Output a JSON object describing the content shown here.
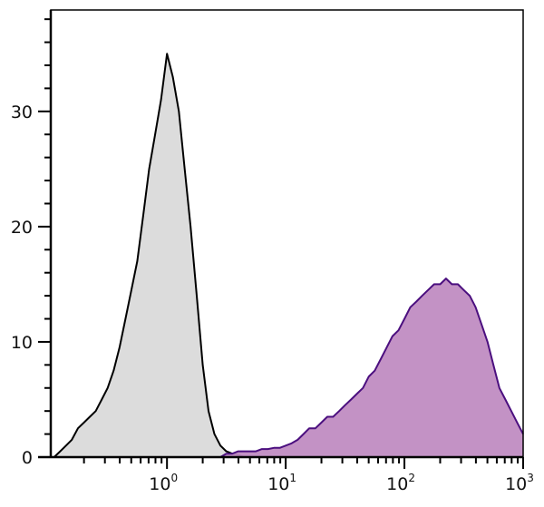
{
  "chart_data": {
    "type": "area",
    "title": "",
    "xlabel": "",
    "ylabel": "",
    "x_scale": "log",
    "xlim": [
      0.105,
      1000
    ],
    "ylim": [
      0,
      38.8
    ],
    "grid": false,
    "legend": "none",
    "x_ticks": [
      {
        "value": 1,
        "base": "10",
        "exp": "0"
      },
      {
        "value": 10,
        "base": "10",
        "exp": "1"
      },
      {
        "value": 100,
        "base": "10",
        "exp": "2"
      },
      {
        "value": 1000,
        "base": "10",
        "exp": "3"
      }
    ],
    "y_ticks": [
      {
        "value": 0,
        "label": "0"
      },
      {
        "value": 10,
        "label": "10"
      },
      {
        "value": 20,
        "label": "20"
      },
      {
        "value": 30,
        "label": "30"
      }
    ],
    "x": [
      0.1,
      0.112,
      0.126,
      0.141,
      0.158,
      0.178,
      0.2,
      0.224,
      0.251,
      0.282,
      0.316,
      0.355,
      0.398,
      0.447,
      0.501,
      0.562,
      0.631,
      0.708,
      0.794,
      0.891,
      1,
      1.12,
      1.26,
      1.41,
      1.58,
      1.78,
      2,
      2.24,
      2.51,
      2.82,
      3.16,
      3.55,
      3.98,
      4.47,
      5.01,
      5.62,
      6.31,
      7.08,
      7.94,
      8.91,
      10,
      11.2,
      12.6,
      14.1,
      15.8,
      17.8,
      20,
      22.4,
      25.1,
      28.2,
      31.6,
      35.5,
      39.8,
      44.7,
      50.1,
      56.2,
      63.1,
      70.8,
      79.4,
      89.1,
      100,
      112,
      126,
      141,
      158,
      178,
      200,
      224,
      251,
      282,
      316,
      355,
      398,
      447,
      501,
      562,
      631,
      708,
      794,
      891,
      1000
    ],
    "series": [
      {
        "color": "#000000",
        "fill": "#dcdcdc",
        "values": [
          0,
          0,
          0.5,
          1,
          1.5,
          2.5,
          3,
          3.5,
          4,
          5,
          6,
          7.5,
          9.5,
          12,
          14.5,
          17,
          21,
          25,
          28,
          31,
          35,
          33,
          30,
          25,
          20,
          14,
          8,
          4,
          2,
          1,
          0.5,
          0.3,
          0.2,
          0,
          0,
          0,
          0,
          0,
          0,
          0,
          0,
          0,
          0,
          0,
          0,
          0,
          0,
          0,
          0,
          0,
          0,
          0,
          0,
          0,
          0,
          0,
          0,
          0,
          0,
          0,
          0,
          0,
          0,
          0,
          0,
          0,
          0,
          0,
          0,
          0,
          0,
          0,
          0,
          0,
          0,
          0,
          0,
          0,
          0,
          0,
          0
        ]
      },
      {
        "color": "#4b0f7f",
        "fill": "#c08cc2",
        "values": [
          0,
          0,
          0,
          0,
          0,
          0,
          0,
          0,
          0,
          0,
          0,
          0,
          0,
          0,
          0,
          0,
          0,
          0,
          0,
          0,
          0,
          0,
          0,
          0,
          0,
          0,
          0,
          0,
          0,
          0,
          0.3,
          0.3,
          0.5,
          0.5,
          0.5,
          0.5,
          0.7,
          0.7,
          0.8,
          0.8,
          1,
          1.2,
          1.5,
          2,
          2.5,
          2.5,
          3,
          3.5,
          3.5,
          4,
          4.5,
          5,
          5.5,
          6,
          7,
          7.5,
          8.5,
          9.5,
          10.5,
          11,
          12,
          13,
          13.5,
          14,
          14.5,
          15,
          15,
          15.5,
          15,
          15,
          14.5,
          14,
          13,
          11.5,
          10,
          8,
          6,
          5,
          4,
          3,
          2
        ]
      }
    ]
  }
}
